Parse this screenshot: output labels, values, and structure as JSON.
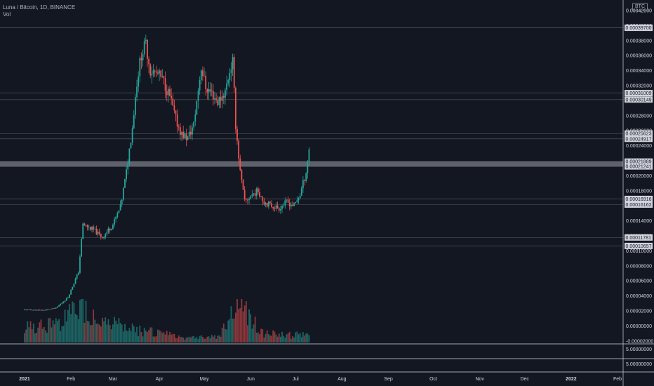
{
  "legend": {
    "symbol": "Luna / Bitcoin, 1D, BINANCE",
    "volume_label": "Vol"
  },
  "currency_badge": "BTC",
  "colors": {
    "background": "#131722",
    "up": "#26a69a",
    "down": "#ef5350",
    "grid": "#2a2e39",
    "axis_text": "#d1d4dc",
    "level_line": "#9598a1",
    "zone": "#787b86"
  },
  "chart_data": {
    "type": "candlestick",
    "y_scale": "linear",
    "ylim": [
      -2.2e-05,
      0.000434
    ],
    "price_ticks": [
      "0.00042000",
      "0.00040000",
      "0.00038000",
      "0.00036000",
      "0.00034000",
      "0.00032000",
      "0.00030000",
      "0.00028000",
      "0.00026000",
      "0.00024000",
      "0.00022000",
      "0.00020000",
      "0.00018000",
      "0.00016000",
      "0.00014000",
      "0.00012000",
      "0.00010000",
      "0.00008000",
      "0.00006000",
      "0.00004000",
      "0.00002000",
      "0.00000000",
      "-0.00002000"
    ],
    "price_tick_values": [
      0.00042,
      0.0004,
      0.00038,
      0.00036,
      0.00034,
      0.00032,
      0.0003,
      0.00028,
      0.00026,
      0.00024,
      0.00022,
      0.0002,
      0.00018,
      0.00016,
      0.00014,
      0.00012,
      0.0001,
      8e-05,
      6e-05,
      4e-05,
      2e-05,
      0,
      -2e-05
    ],
    "level_labels": [
      "0.00039700",
      "0.00031009",
      "0.00030149",
      "0.00025623",
      "0.00024917",
      "0.00021889",
      "0.00021241",
      "0.00016916",
      "0.00016162",
      "0.00011781",
      "0.00010657"
    ],
    "level_values": [
      0.000397,
      0.00031009,
      0.00030149,
      0.00025623,
      0.00024917,
      0.00021889,
      0.00021241,
      0.00016916,
      0.00016162,
      0.00011781,
      0.00010657
    ],
    "zone": [
      0.00021241,
      0.00021889
    ],
    "x_range": [
      "2021-01-01",
      "2022-02-01"
    ],
    "x_ticks": [
      {
        "date": "2021-01-01",
        "label": "2021"
      },
      {
        "date": "2021-02-01",
        "label": "Feb"
      },
      {
        "date": "2021-03-01",
        "label": "Mar"
      },
      {
        "date": "2021-04-01",
        "label": "Apr"
      },
      {
        "date": "2021-05-01",
        "label": "May"
      },
      {
        "date": "2021-06-01",
        "label": "Jun"
      },
      {
        "date": "2021-07-01",
        "label": "Jul"
      },
      {
        "date": "2021-08-01",
        "label": "Aug"
      },
      {
        "date": "2021-09-01",
        "label": "Sep"
      },
      {
        "date": "2021-10-01",
        "label": "Oct"
      },
      {
        "date": "2021-11-01",
        "label": "Nov"
      },
      {
        "date": "2021-12-01",
        "label": "Dec"
      },
      {
        "date": "2022-01-01",
        "label": "2022"
      },
      {
        "date": "2022-02-01",
        "label": "Feb"
      }
    ],
    "price_anchors": [
      [
        "2021-01-01",
        2.15e-05
      ],
      [
        "2021-01-14",
        2.1e-05
      ],
      [
        "2021-01-22",
        2.4e-05
      ],
      [
        "2021-01-30",
        3.8e-05
      ],
      [
        "2021-02-06",
        7.2e-05
      ],
      [
        "2021-02-09",
        0.000135
      ],
      [
        "2021-02-16",
        0.000128
      ],
      [
        "2021-02-22",
        0.000118
      ],
      [
        "2021-03-01",
        0.000135
      ],
      [
        "2021-03-06",
        0.000158
      ],
      [
        "2021-03-10",
        0.000205
      ],
      [
        "2021-03-14",
        0.000265
      ],
      [
        "2021-03-17",
        0.000325
      ],
      [
        "2021-03-20",
        0.000362
      ],
      [
        "2021-03-23",
        0.000375
      ],
      [
        "2021-03-26",
        0.00034
      ],
      [
        "2021-03-31",
        0.000335
      ],
      [
        "2021-04-04",
        0.000325
      ],
      [
        "2021-04-08",
        0.000305
      ],
      [
        "2021-04-12",
        0.000275
      ],
      [
        "2021-04-16",
        0.000255
      ],
      [
        "2021-04-20",
        0.00025
      ],
      [
        "2021-04-24",
        0.000268
      ],
      [
        "2021-04-27",
        0.000315
      ],
      [
        "2021-04-29",
        0.000345
      ],
      [
        "2021-05-02",
        0.000318
      ],
      [
        "2021-05-06",
        0.00031
      ],
      [
        "2021-05-10",
        0.000298
      ],
      [
        "2021-05-15",
        0.000312
      ],
      [
        "2021-05-18",
        0.00034
      ],
      [
        "2021-05-20",
        0.000352
      ],
      [
        "2021-05-22",
        0.000268
      ],
      [
        "2021-05-25",
        0.000205
      ],
      [
        "2021-05-28",
        0.000165
      ],
      [
        "2021-06-02",
        0.000175
      ],
      [
        "2021-06-06",
        0.00018
      ],
      [
        "2021-06-10",
        0.000165
      ],
      [
        "2021-06-15",
        0.00016
      ],
      [
        "2021-06-20",
        0.000157
      ],
      [
        "2021-06-25",
        0.000165
      ],
      [
        "2021-06-30",
        0.00016
      ],
      [
        "2021-07-04",
        0.000175
      ],
      [
        "2021-07-08",
        0.000205
      ],
      [
        "2021-07-10",
        0.000235
      ]
    ],
    "volume_anchors": [
      [
        "2021-01-01",
        1.1e-07
      ],
      [
        "2021-01-25",
        1.4e-07
      ],
      [
        "2021-02-08",
        2.6e-07
      ],
      [
        "2021-02-20",
        1.6e-07
      ],
      [
        "2021-03-10",
        1e-07
      ],
      [
        "2021-03-25",
        8e-08
      ],
      [
        "2021-04-15",
        4e-08
      ],
      [
        "2021-05-10",
        4e-08
      ],
      [
        "2021-05-24",
        2.8e-07
      ],
      [
        "2021-06-10",
        6e-08
      ],
      [
        "2021-07-10",
        5e-08
      ]
    ],
    "volume_ticks": [
      "5.00000000",
      "5.00000000"
    ]
  }
}
